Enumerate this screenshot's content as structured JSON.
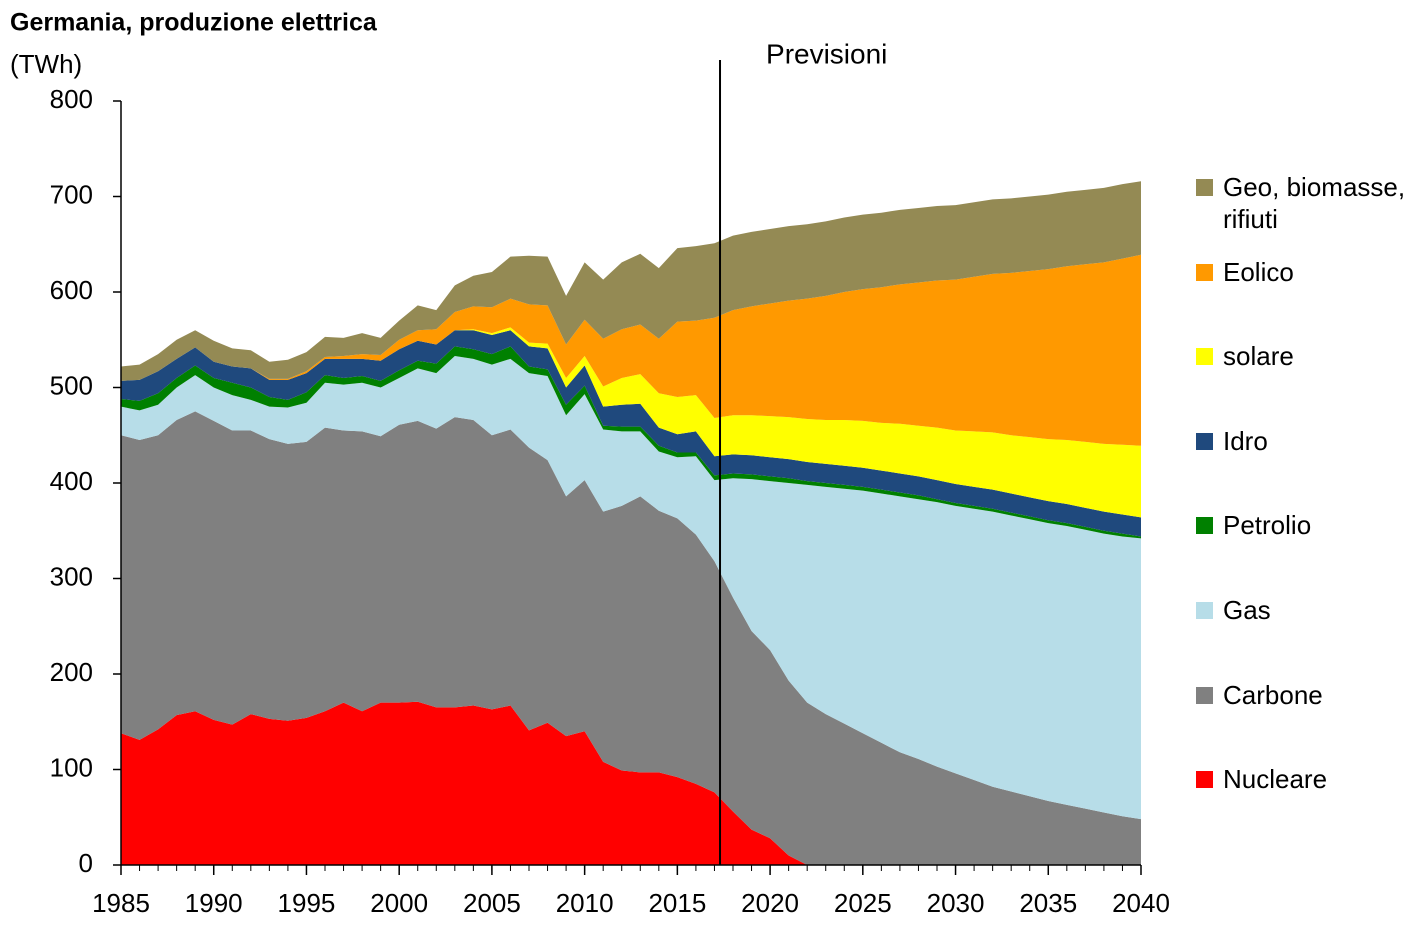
{
  "chart_data": {
    "type": "stacked_area",
    "title": "Germania, produzione elettrica",
    "y_label": "(TWh)",
    "annotation": {
      "text": "Previsioni",
      "x": 2017.3
    },
    "x": [
      1985,
      1986,
      1987,
      1988,
      1989,
      1990,
      1991,
      1992,
      1993,
      1994,
      1995,
      1996,
      1997,
      1998,
      1999,
      2000,
      2001,
      2002,
      2003,
      2004,
      2005,
      2006,
      2007,
      2008,
      2009,
      2010,
      2011,
      2012,
      2013,
      2014,
      2015,
      2016,
      2017,
      2018,
      2019,
      2020,
      2021,
      2022,
      2023,
      2024,
      2025,
      2026,
      2027,
      2028,
      2029,
      2030,
      2031,
      2032,
      2033,
      2034,
      2035,
      2036,
      2037,
      2038,
      2039,
      2040
    ],
    "xlim": [
      1985,
      2040
    ],
    "xticks": [
      1985,
      1990,
      1995,
      2000,
      2005,
      2010,
      2015,
      2020,
      2025,
      2030,
      2035,
      2040
    ],
    "ylim": [
      0,
      800
    ],
    "yticks": [
      0,
      100,
      200,
      300,
      400,
      500,
      600,
      700,
      800
    ],
    "series": [
      {
        "name": "Nucleare",
        "color": "#ff0000",
        "values": [
          138,
          131,
          142,
          157,
          161,
          152,
          147,
          158,
          153,
          151,
          154,
          161,
          170,
          161,
          170,
          170,
          171,
          165,
          165,
          167,
          163,
          167,
          141,
          149,
          135,
          140,
          108,
          99,
          97,
          97,
          92,
          85,
          76,
          56,
          37,
          28,
          10,
          0,
          0,
          0,
          0,
          0,
          0,
          0,
          0,
          0,
          0,
          0,
          0,
          0,
          0,
          0,
          0,
          0,
          0,
          0
        ]
      },
      {
        "name": "Carbone",
        "color": "#808080",
        "values": [
          312,
          314,
          308,
          309,
          314,
          313,
          308,
          297,
          293,
          290,
          289,
          297,
          285,
          293,
          279,
          291,
          294,
          292,
          304,
          299,
          287,
          289,
          296,
          275,
          251,
          263,
          262,
          277,
          289,
          274,
          271,
          261,
          242,
          224,
          208,
          197,
          183,
          170,
          158,
          148,
          138,
          128,
          118,
          111,
          103,
          96,
          89,
          82,
          77,
          72,
          67,
          63,
          59,
          55,
          51,
          48
        ]
      },
      {
        "name": "Gas",
        "color": "#b7dde8",
        "values": [
          30,
          31,
          32,
          34,
          38,
          35,
          37,
          32,
          34,
          38,
          41,
          47,
          48,
          51,
          51,
          49,
          55,
          58,
          64,
          64,
          74,
          74,
          78,
          88,
          85,
          90,
          86,
          78,
          68,
          62,
          64,
          82,
          85,
          125,
          159,
          177,
          207,
          228,
          238,
          246,
          254,
          261,
          268,
          272,
          277,
          280,
          284,
          288,
          289,
          290,
          291,
          292,
          292,
          292,
          293,
          294
        ]
      },
      {
        "name": "Petrolio",
        "color": "#008000",
        "values": [
          8,
          10,
          12,
          10,
          10,
          10,
          13,
          13,
          10,
          8,
          11,
          8,
          7,
          7,
          7,
          8,
          8,
          10,
          10,
          10,
          11,
          13,
          7,
          7,
          11,
          9,
          4,
          5,
          5,
          6,
          5,
          4,
          5,
          5,
          5,
          5,
          5,
          4,
          4,
          4,
          4,
          4,
          4,
          4,
          3,
          3,
          3,
          3,
          3,
          3,
          3,
          3,
          3,
          3,
          3,
          2
        ]
      },
      {
        "name": "Idro",
        "color": "#1f497d",
        "values": [
          19,
          22,
          23,
          20,
          19,
          17,
          17,
          20,
          18,
          21,
          20,
          17,
          20,
          18,
          21,
          22,
          21,
          20,
          17,
          20,
          20,
          17,
          21,
          22,
          18,
          21,
          20,
          23,
          24,
          19,
          19,
          22,
          20,
          20,
          20,
          20,
          20,
          20,
          20,
          20,
          20,
          20,
          20,
          20,
          20,
          20,
          20,
          20,
          20,
          20,
          20,
          20,
          20,
          20,
          20,
          20
        ]
      },
      {
        "name": "solare",
        "color": "#ffff00",
        "values": [
          0,
          0,
          0,
          0,
          0,
          0,
          0,
          0,
          0,
          0,
          0,
          0,
          0,
          0,
          0,
          0,
          0,
          0,
          0,
          1,
          2,
          3,
          4,
          5,
          10,
          10,
          21,
          28,
          31,
          36,
          39,
          38,
          40,
          41,
          42,
          43,
          44,
          45,
          46,
          48,
          49,
          50,
          52,
          53,
          55,
          56,
          58,
          60,
          61,
          63,
          65,
          67,
          69,
          71,
          73,
          75
        ]
      },
      {
        "name": "Eolico",
        "color": "#ff9900",
        "values": [
          0,
          0,
          0,
          0,
          0,
          0,
          0,
          0,
          1,
          1,
          2,
          2,
          3,
          5,
          6,
          10,
          11,
          16,
          19,
          24,
          27,
          30,
          40,
          40,
          35,
          38,
          50,
          51,
          52,
          57,
          79,
          78,
          105,
          110,
          114,
          118,
          122,
          126,
          130,
          134,
          138,
          142,
          146,
          150,
          154,
          158,
          162,
          166,
          170,
          174,
          178,
          182,
          186,
          190,
          195,
          200
        ]
      },
      {
        "name": "Geo, biomasse, rifiuti",
        "color": "#948a54",
        "values": [
          15,
          16,
          18,
          20,
          18,
          22,
          19,
          19,
          18,
          20,
          20,
          21,
          19,
          22,
          18,
          20,
          26,
          20,
          28,
          32,
          37,
          44,
          51,
          51,
          51,
          60,
          62,
          70,
          74,
          74,
          77,
          78,
          78,
          78,
          78,
          78,
          78,
          78,
          78,
          78,
          78,
          78,
          78,
          78,
          78,
          78,
          78,
          78,
          78,
          78,
          78,
          78,
          78,
          78,
          78,
          77
        ]
      }
    ]
  }
}
